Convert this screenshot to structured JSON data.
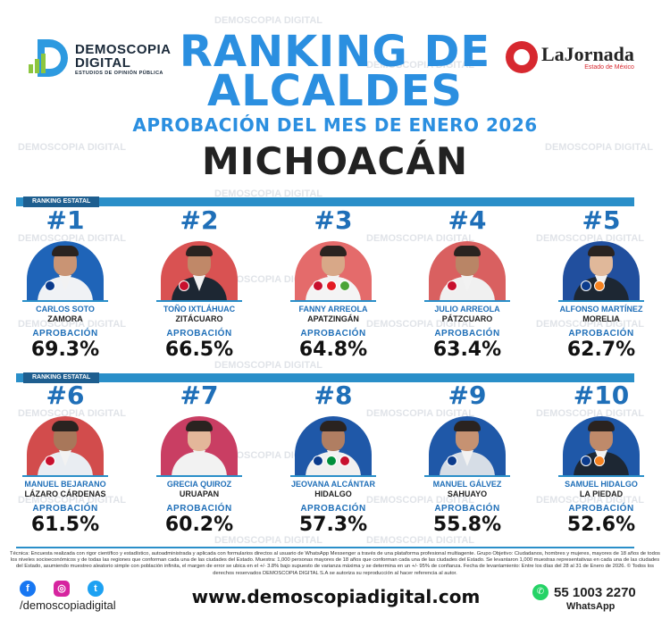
{
  "header": {
    "brand_name": "DEMOSCOPIA DIGITAL",
    "brand_tagline": "ESTUDIOS DE OPINIÓN PÚBLICA",
    "title_line1": "RANKING DE",
    "title_line2": "ALCALDES",
    "subtitle": "APROBACIÓN DEL MES DE ENERO 2026",
    "state": "MICHOACÁN",
    "partner_name": "LaJornada",
    "partner_tagline": "Estado de México",
    "accent_color": "#2b8fe0"
  },
  "ranking_label": "RANKING ESTATAL",
  "approval_label": "APROBACIÓN",
  "mayors": [
    {
      "rank": "#1",
      "name": "CARLOS SOTO",
      "city": "ZAMORA",
      "approval": "69.3%",
      "parties": [
        "pan"
      ]
    },
    {
      "rank": "#2",
      "name": "TOÑO IXTLÁHUAC",
      "city": "ZITÁCUARO",
      "approval": "66.5%",
      "parties": [
        "morena"
      ]
    },
    {
      "rank": "#3",
      "name": "FANNY ARREOLA",
      "city": "APATZINGÁN",
      "approval": "64.8%",
      "parties": [
        "morena",
        "pt",
        "verde"
      ]
    },
    {
      "rank": "#4",
      "name": "JULIO ARREOLA",
      "city": "PÁTZCUARO",
      "approval": "63.4%",
      "parties": [
        "morena"
      ]
    },
    {
      "rank": "#5",
      "name": "ALFONSO MARTÍNEZ",
      "city": "MORELIA",
      "approval": "62.7%",
      "parties": [
        "pan",
        "mc"
      ]
    },
    {
      "rank": "#6",
      "name": "MANUEL BEJARANO",
      "city": "LÁZARO CÁRDENAS",
      "approval": "61.5%",
      "parties": [
        "morena"
      ]
    },
    {
      "rank": "#7",
      "name": "GRECIA QUIROZ",
      "city": "URUAPAN",
      "approval": "60.2%",
      "parties": []
    },
    {
      "rank": "#8",
      "name": "JEOVANA ALCÁNTAR",
      "city": "HIDALGO",
      "approval": "57.3%",
      "parties": [
        "pan",
        "pri",
        "morena"
      ]
    },
    {
      "rank": "#9",
      "name": "MANUEL GÁLVEZ",
      "city": "SAHUAYO",
      "approval": "55.8%",
      "parties": [
        "pan"
      ]
    },
    {
      "rank": "#10",
      "name": "SAMUEL HIDALGO",
      "city": "LA PIEDAD",
      "approval": "52.6%",
      "parties": [
        "pan",
        "mc"
      ]
    }
  ],
  "footer": {
    "methodology": "Técnica: Encuesta realizada con rigor científico y estadístico, autoadministrada y aplicada con formularios directos al usuario de WhatsApp Messenger a través de una plataforma profesional multiagente. Grupo Objetivo: Ciudadanos, hombres y mujeres, mayores de 18 años de todos los niveles socioeconómicos y de todas las regiones que conforman cada una de las ciudades del Estado. Muestra: 1,000 personas mayores de 18 años que conforman cada una de las ciudades del Estado. Se levantaron 1,000 muestras representativas en cada una de las ciudades del Estado, asumiendo muestreo aleatorio simple con población infinita, el margen de error se ubica en el +/- 3.8% bajo supuesto de varianza máxima y se determina en un +/- 95% de confianza. Fecha de levantamiento: Entre los días del 28 al 31 de Enero de 2026. © Todos los derechos reservados DEMOSCOPIA DIGITAL S.A se autoriza su reproducción al hacer referencia al autor.",
    "handle": "/demoscopiadigital",
    "website": "www.demoscopiadigital.com",
    "phone": "55 1003 2270",
    "whatsapp_label": "WhatsApp",
    "social_icons": [
      "facebook-icon",
      "instagram-icon",
      "twitter-icon"
    ]
  }
}
